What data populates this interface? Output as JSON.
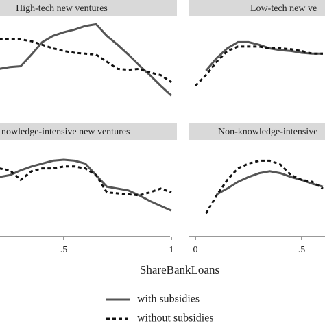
{
  "chart_data": {
    "type": "line",
    "xlabel": "ShareBankLoans",
    "legend": [
      {
        "name": "with subsidies",
        "color": "#555555",
        "dash": false
      },
      {
        "name": "without subsidies",
        "color": "#111111",
        "dash": true
      }
    ],
    "panels": [
      {
        "title": "High-tech new ventures",
        "xlim": [
          0,
          1
        ],
        "ylim": [
          0,
          1
        ],
        "x": [
          0.2,
          0.25,
          0.3,
          0.35,
          0.4,
          0.45,
          0.5,
          0.55,
          0.6,
          0.65,
          0.7,
          0.75,
          0.8,
          0.85,
          0.9,
          0.95,
          1.0
        ],
        "series": [
          {
            "values": [
              0.42,
              0.44,
              0.45,
              0.58,
              0.72,
              0.79,
              0.83,
              0.86,
              0.9,
              0.92,
              0.79,
              0.69,
              0.58,
              0.46,
              0.35,
              0.23,
              0.12
            ]
          },
          {
            "values": [
              0.75,
              0.75,
              0.75,
              0.73,
              0.69,
              0.65,
              0.62,
              0.6,
              0.59,
              0.58,
              0.5,
              0.42,
              0.41,
              0.42,
              0.38,
              0.35,
              0.27
            ]
          }
        ]
      },
      {
        "title": "Low-tech new ve",
        "xlim": [
          0,
          1
        ],
        "ylim": [
          0,
          1
        ],
        "x": [
          0,
          0.05,
          0.1,
          0.15,
          0.2,
          0.25,
          0.3,
          0.35,
          0.4,
          0.45,
          0.5,
          0.55,
          0.6
        ],
        "series": [
          {
            "values": [
              null,
              0.4,
              0.54,
              0.65,
              0.72,
              0.72,
              0.69,
              0.65,
              0.63,
              0.62,
              0.6,
              0.59,
              0.59
            ]
          },
          {
            "values": [
              0.23,
              0.35,
              0.5,
              0.62,
              0.67,
              0.67,
              0.67,
              0.65,
              0.65,
              0.64,
              0.62,
              0.59,
              0.59
            ]
          }
        ]
      },
      {
        "title": "nowledge-intensive new ventures",
        "xlim": [
          0,
          1
        ],
        "ylim": [
          0,
          1
        ],
        "xticks": [
          {
            "value": 0.5,
            "label": ".5"
          },
          1
        ],
        "x": [
          0.2,
          0.25,
          0.3,
          0.35,
          0.4,
          0.45,
          0.5,
          0.55,
          0.6,
          0.65,
          0.7,
          0.75,
          0.8,
          0.85,
          0.9,
          0.95,
          1.0
        ],
        "series": [
          {
            "values": [
              0.62,
              0.64,
              0.69,
              0.73,
              0.76,
              0.79,
              0.8,
              0.79,
              0.76,
              0.64,
              0.52,
              0.5,
              0.48,
              0.43,
              0.37,
              0.32,
              0.27
            ]
          },
          {
            "values": [
              0.71,
              0.69,
              0.59,
              0.68,
              0.71,
              0.71,
              0.73,
              0.73,
              0.71,
              0.64,
              0.46,
              0.45,
              0.44,
              0.43,
              0.46,
              0.5,
              0.46
            ]
          }
        ]
      },
      {
        "title": "Non-knowledge-intensive",
        "xlim": [
          0,
          1
        ],
        "ylim": [
          0,
          1
        ],
        "xticks": [
          0,
          {
            "value": 0.5,
            "label": ".5"
          }
        ],
        "x": [
          0,
          0.05,
          0.1,
          0.15,
          0.2,
          0.25,
          0.3,
          0.35,
          0.4,
          0.45,
          0.5,
          0.55,
          0.6
        ],
        "series": [
          {
            "values": [
              null,
              null,
              0.44,
              0.5,
              0.57,
              0.62,
              0.66,
              0.68,
              0.66,
              0.62,
              0.59,
              0.55,
              0.52
            ]
          },
          {
            "values": [
              null,
              0.24,
              0.43,
              0.59,
              0.71,
              0.76,
              0.79,
              0.79,
              0.75,
              0.64,
              0.59,
              0.57,
              0.5
            ]
          }
        ]
      }
    ]
  }
}
